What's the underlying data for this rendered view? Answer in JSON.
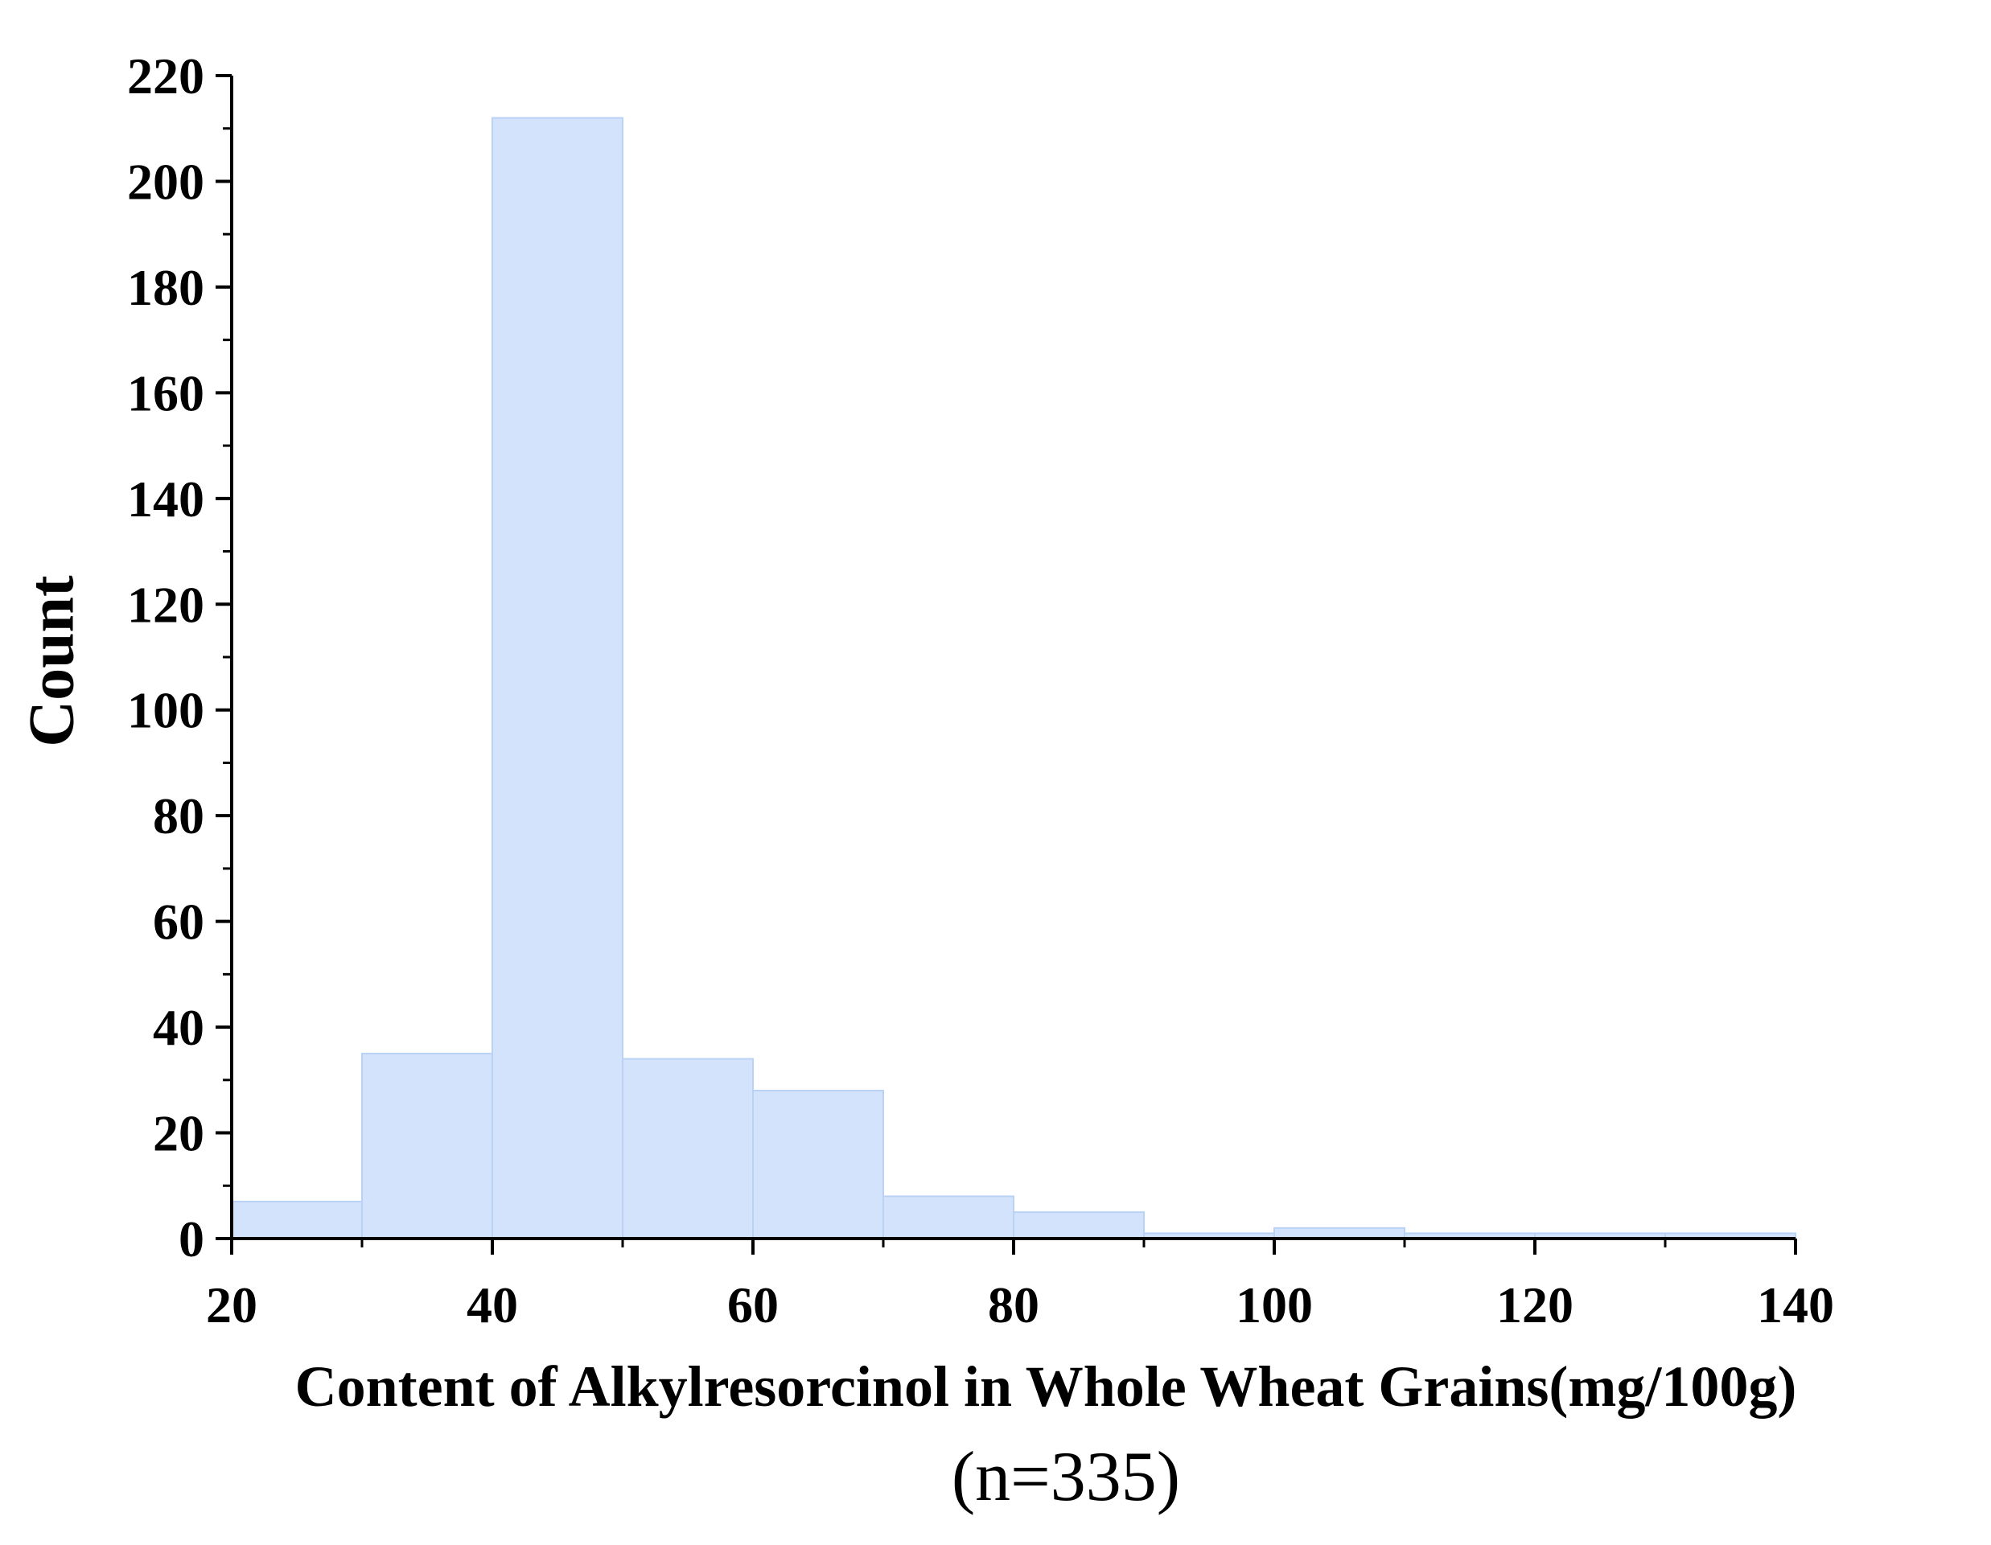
{
  "chart_data": {
    "type": "bar",
    "title": "",
    "xlabel": "Content of Alkylresorcinol in Whole Wheat Grains(mg/100g)",
    "sample_size_label": "(n=335)",
    "ylabel": "Count",
    "bins": [
      {
        "start": 20,
        "end": 30,
        "count": 7
      },
      {
        "start": 30,
        "end": 40,
        "count": 35
      },
      {
        "start": 40,
        "end": 50,
        "count": 212
      },
      {
        "start": 50,
        "end": 60,
        "count": 34
      },
      {
        "start": 60,
        "end": 70,
        "count": 28
      },
      {
        "start": 70,
        "end": 80,
        "count": 8
      },
      {
        "start": 80,
        "end": 90,
        "count": 5
      },
      {
        "start": 90,
        "end": 100,
        "count": 1
      },
      {
        "start": 100,
        "end": 110,
        "count": 2
      },
      {
        "start": 110,
        "end": 120,
        "count": 1
      },
      {
        "start": 120,
        "end": 130,
        "count": 1
      },
      {
        "start": 130,
        "end": 140,
        "count": 1
      }
    ],
    "xlim": [
      20,
      140
    ],
    "ylim": [
      0,
      220
    ],
    "x_ticks": [
      20,
      40,
      60,
      80,
      100,
      120,
      140
    ],
    "y_ticks": [
      0,
      20,
      40,
      60,
      80,
      100,
      120,
      140,
      160,
      180,
      200,
      220
    ],
    "grid": false,
    "legend": "none",
    "colors": {
      "bar_fill": "#d3e3fb",
      "bar_stroke": "#b9d2f5",
      "axis": "#000000"
    }
  }
}
